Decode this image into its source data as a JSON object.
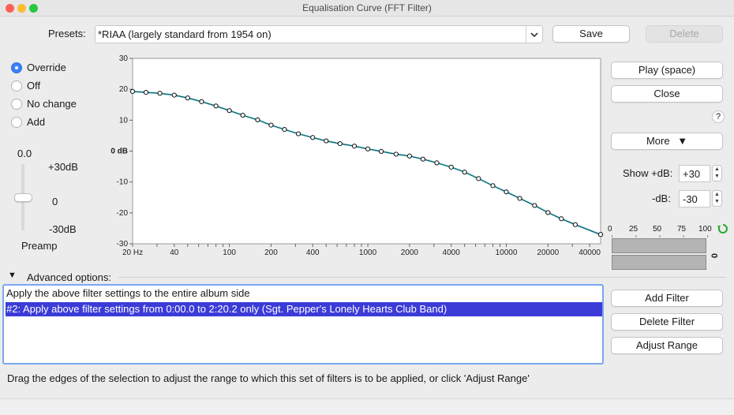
{
  "window": {
    "title": "Equalisation Curve (FFT Filter)"
  },
  "presets": {
    "label": "Presets:",
    "value": "*RIAA (largely standard from 1954 on)",
    "save_label": "Save",
    "delete_label": "Delete"
  },
  "mode": {
    "options": [
      "Override",
      "Off",
      "No change",
      "Add"
    ],
    "selected": "Override"
  },
  "preamp": {
    "value_text": "0.0",
    "top_label": "+30dB",
    "mid_label": "0",
    "bottom_label": "-30dB",
    "label": "Preamp",
    "level_db": 0
  },
  "buttons": {
    "play": "Play (space)",
    "close": "Close",
    "help": "?",
    "more": "More",
    "more_arrow": "▼"
  },
  "db_range": {
    "show_plus_label": "Show +dB:",
    "plus_value": "+30",
    "minus_label": "-dB:",
    "minus_value": "-30"
  },
  "meter": {
    "ticks": [
      "0",
      "25",
      "50",
      "75",
      "100"
    ],
    "side_label": "0"
  },
  "advanced": {
    "label": "Advanced options:",
    "toggle": "▼"
  },
  "filter_list": {
    "rows": [
      "Apply the above filter settings to the entire album side",
      "#2: Apply above filter settings from 0:00.0 to 2:20.2 only (Sgt. Pepper's Lonely Hearts Club Band)"
    ],
    "selected_index": 1
  },
  "filter_buttons": {
    "add": "Add Filter",
    "delete": "Delete Filter",
    "adjust": "Adjust Range"
  },
  "hint": "Drag the edges of the selection to adjust the range to which this set of filters is to be applied, or click 'Adjust Range'",
  "colors": {
    "curve": "#3bb6c4",
    "selection": "#3b3bd8",
    "accent": "#3b82f6"
  },
  "chart_data": {
    "type": "line",
    "xscale": "log",
    "xlim": [
      20,
      48000
    ],
    "ylim": [
      -30,
      30
    ],
    "x_tick_labels": [
      {
        "value": 20,
        "label": "20 Hz"
      },
      {
        "value": 40,
        "label": "40"
      },
      {
        "value": 100,
        "label": "100"
      },
      {
        "value": 200,
        "label": "200"
      },
      {
        "value": 400,
        "label": "400"
      },
      {
        "value": 1000,
        "label": "1000"
      },
      {
        "value": 2000,
        "label": "2000"
      },
      {
        "value": 4000,
        "label": "4000"
      },
      {
        "value": 10000,
        "label": "10000"
      },
      {
        "value": 20000,
        "label": "20000"
      },
      {
        "value": 40000,
        "label": "40000"
      }
    ],
    "y_tick_labels": [
      {
        "value": 30,
        "label": "30"
      },
      {
        "value": 20,
        "label": "20"
      },
      {
        "value": 10,
        "label": "10"
      },
      {
        "value": 0,
        "label": "0 dB"
      },
      {
        "value": -10,
        "label": "-10"
      },
      {
        "value": -20,
        "label": "-20"
      },
      {
        "value": -30,
        "label": "-30"
      }
    ],
    "series": [
      {
        "x": [
          20,
          25,
          31.5,
          40,
          50,
          63,
          80,
          100,
          125,
          160,
          200,
          250,
          315,
          400,
          500,
          630,
          800,
          1000,
          1250,
          1600,
          2000,
          2500,
          3150,
          4000,
          5000,
          6300,
          8000,
          10000,
          12500,
          16000,
          20000,
          25000,
          31500,
          48000
        ],
        "y": [
          19.3,
          19.0,
          18.7,
          18.1,
          17.2,
          16.0,
          14.6,
          13.1,
          11.6,
          10.1,
          8.4,
          7.0,
          5.6,
          4.4,
          3.3,
          2.4,
          1.6,
          0.7,
          -0.1,
          -1.0,
          -1.6,
          -2.6,
          -3.8,
          -5.2,
          -6.8,
          -8.9,
          -11.2,
          -13.2,
          -15.3,
          -17.6,
          -19.9,
          -21.9,
          -23.8,
          -27.0
        ]
      }
    ]
  }
}
